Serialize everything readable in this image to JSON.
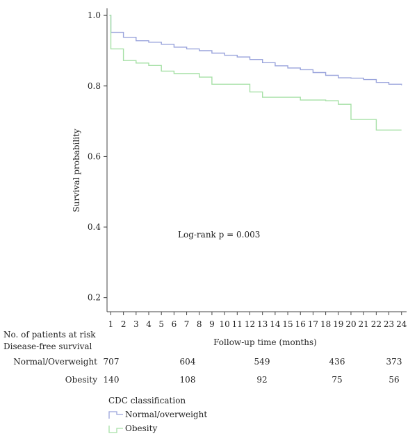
{
  "chart_data": {
    "type": "line",
    "step": true,
    "xlabel": "Follow-up time (months)",
    "ylabel": "Survival probability",
    "x_ticks": [
      1,
      2,
      3,
      4,
      5,
      6,
      7,
      8,
      9,
      10,
      11,
      12,
      13,
      14,
      15,
      16,
      17,
      18,
      19,
      20,
      21,
      22,
      23,
      24
    ],
    "y_ticks": [
      0.2,
      0.4,
      0.6,
      0.8,
      1.0
    ],
    "y_tick_labels": [
      "0.2",
      "0.4",
      "0.6",
      "0.8",
      "1.0"
    ],
    "xlim": [
      0.7,
      24.4
    ],
    "ylim": [
      0.16,
      1.02
    ],
    "grid": false,
    "annotation": "Log-rank p = 0.003",
    "series": [
      {
        "name": "Normal/overweight",
        "color": "#9aa4dc",
        "x": [
          0.9,
          1.0,
          2.0,
          3.0,
          4.0,
          5.0,
          6.0,
          7.0,
          8.0,
          9.0,
          10.0,
          11.0,
          12.0,
          13.0,
          14.0,
          15.0,
          16.0,
          17.0,
          18.0,
          19.0,
          20.0,
          21.0,
          22.0,
          23.0,
          24.0
        ],
        "y": [
          1.0,
          0.952,
          0.938,
          0.928,
          0.924,
          0.918,
          0.91,
          0.905,
          0.9,
          0.893,
          0.887,
          0.882,
          0.875,
          0.866,
          0.857,
          0.851,
          0.846,
          0.838,
          0.83,
          0.823,
          0.822,
          0.818,
          0.81,
          0.805,
          0.802
        ]
      },
      {
        "name": "Obesity",
        "color": "#a6e0a6",
        "x": [
          0.9,
          1.0,
          2.0,
          3.0,
          4.0,
          5.0,
          6.0,
          7.0,
          8.0,
          9.0,
          10.0,
          11.0,
          12.0,
          13.0,
          14.0,
          15.0,
          16.0,
          17.0,
          18.0,
          19.0,
          20.0,
          21.0,
          22.0,
          23.0,
          24.0
        ],
        "y": [
          1.0,
          0.905,
          0.872,
          0.865,
          0.858,
          0.842,
          0.835,
          0.835,
          0.825,
          0.805,
          0.805,
          0.805,
          0.783,
          0.768,
          0.768,
          0.768,
          0.76,
          0.76,
          0.758,
          0.748,
          0.705,
          0.705,
          0.675,
          0.675,
          0.675
        ]
      }
    ]
  },
  "risk_table": {
    "heading_line1": "No. of patients at risk",
    "heading_line2": "Disease-free survival",
    "time_points": [
      1,
      7,
      13,
      19,
      24
    ],
    "rows": [
      {
        "group": "Normal/Overweight",
        "values": [
          "707",
          "604",
          "549",
          "436",
          "373"
        ]
      },
      {
        "group": "Obesity",
        "values": [
          "140",
          "108",
          "92",
          "75",
          "56"
        ]
      }
    ]
  },
  "legend": {
    "title": "CDC classification",
    "items": [
      {
        "label": "Normal/overweight",
        "color": "#9aa4dc"
      },
      {
        "label": "Obesity",
        "color": "#a6e0a6"
      }
    ]
  }
}
